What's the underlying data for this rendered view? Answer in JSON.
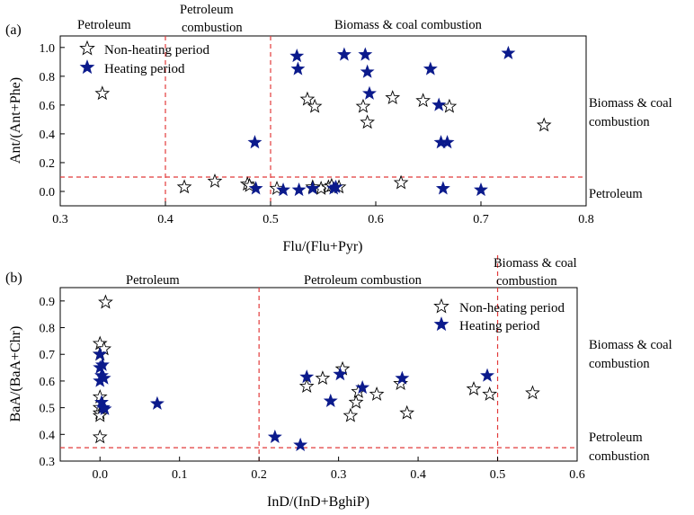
{
  "chart_data": [
    {
      "type": "scatter",
      "panel_label": "(a)",
      "xlabel": "Flu/(Flu+Pyr)",
      "ylabel": "Ant/(Ant+Phe)",
      "xlim": [
        0.3,
        0.8
      ],
      "ylim": [
        -0.1,
        1.08
      ],
      "xticks": [
        0.3,
        0.4,
        0.5,
        0.6,
        0.7,
        0.8
      ],
      "xtick_labels": [
        "0.3",
        "0.4",
        "0.5",
        "0.6",
        "0.7",
        "0.8"
      ],
      "yticks": [
        0.0,
        0.2,
        0.4,
        0.6,
        0.8,
        1.0
      ],
      "ytick_labels": [
        "0.0",
        "0.2",
        "0.4",
        "0.6",
        "0.8",
        "1.0"
      ],
      "legend_position": "top-left",
      "thresholds": [
        {
          "axis": "x",
          "value": 0.4
        },
        {
          "axis": "x",
          "value": 0.5
        },
        {
          "axis": "y",
          "value": 0.1
        }
      ],
      "region_labels": {
        "top_left": "Petroleum",
        "top_middle": [
          "Petroleum",
          "combustion"
        ],
        "top_right": "Biomass & coal combustion",
        "right_upper": [
          "Biomass & coal",
          "combustion"
        ],
        "right_lower": "Petroleum"
      },
      "series": [
        {
          "name": "Non-heating period",
          "marker": "open-star",
          "x": [
            0.34,
            0.418,
            0.447,
            0.478,
            0.48,
            0.506,
            0.535,
            0.54,
            0.542,
            0.548,
            0.555,
            0.558,
            0.565,
            0.588,
            0.592,
            0.616,
            0.624,
            0.645,
            0.67,
            0.76
          ],
          "y": [
            0.68,
            0.03,
            0.07,
            0.05,
            0.04,
            0.02,
            0.64,
            0.03,
            0.59,
            0.02,
            0.03,
            0.04,
            0.03,
            0.59,
            0.48,
            0.65,
            0.06,
            0.63,
            0.59,
            0.46
          ]
        },
        {
          "name": "Heating period",
          "marker": "filled-star",
          "x": [
            0.485,
            0.486,
            0.512,
            0.525,
            0.526,
            0.527,
            0.54,
            0.56,
            0.562,
            0.57,
            0.59,
            0.592,
            0.594,
            0.652,
            0.66,
            0.662,
            0.664,
            0.668,
            0.7,
            0.726
          ],
          "y": [
            0.34,
            0.02,
            0.01,
            0.94,
            0.85,
            0.01,
            0.02,
            0.02,
            0.03,
            0.95,
            0.95,
            0.83,
            0.68,
            0.85,
            0.6,
            0.34,
            0.02,
            0.34,
            0.01,
            0.96
          ]
        }
      ]
    },
    {
      "type": "scatter",
      "panel_label": "(b)",
      "xlabel": "InD/(InD+BghiP)",
      "ylabel": "BaA/(BaA+Chr)",
      "xlim": [
        -0.05,
        0.6
      ],
      "ylim": [
        0.3,
        0.95
      ],
      "xticks": [
        0.0,
        0.1,
        0.2,
        0.3,
        0.4,
        0.5,
        0.6
      ],
      "xtick_labels": [
        "0.0",
        "0.1",
        "0.2",
        "0.3",
        "0.4",
        "0.5",
        "0.6"
      ],
      "yticks": [
        0.3,
        0.4,
        0.5,
        0.6,
        0.7,
        0.8,
        0.9
      ],
      "ytick_labels": [
        "0.3",
        "0.4",
        "0.5",
        "0.6",
        "0.7",
        "0.8",
        "0.9"
      ],
      "legend_position": "top-right",
      "thresholds": [
        {
          "axis": "x",
          "value": 0.2
        },
        {
          "axis": "x",
          "value": 0.5
        },
        {
          "axis": "y",
          "value": 0.35
        }
      ],
      "region_labels": {
        "top_left": "Petroleum",
        "top_middle": "Petroleum combustion",
        "top_right": [
          "Biomass & coal",
          "combustion"
        ],
        "right_upper": [
          "Biomass & coal",
          "combustion"
        ],
        "right_lower": [
          "Petroleum",
          "combustion"
        ]
      },
      "series": [
        {
          "name": "Non-heating period",
          "marker": "open-star",
          "x": [
            0.0,
            0.0,
            0.0,
            0.0,
            0.0,
            0.0,
            0.0,
            0.005,
            0.007,
            0.26,
            0.28,
            0.305,
            0.315,
            0.322,
            0.325,
            0.348,
            0.378,
            0.386,
            0.47,
            0.49,
            0.544
          ],
          "y": [
            0.74,
            0.7,
            0.54,
            0.5,
            0.48,
            0.47,
            0.39,
            0.72,
            0.895,
            0.58,
            0.61,
            0.645,
            0.47,
            0.52,
            0.56,
            0.55,
            0.59,
            0.48,
            0.57,
            0.55,
            0.555
          ]
        },
        {
          "name": "Heating period",
          "marker": "filled-star",
          "x": [
            0.0,
            0.0,
            0.0,
            0.002,
            0.002,
            0.003,
            0.004,
            0.005,
            0.006,
            0.072,
            0.22,
            0.252,
            0.26,
            0.29,
            0.302,
            0.33,
            0.38,
            0.487
          ],
          "y": [
            0.7,
            0.65,
            0.6,
            0.62,
            0.52,
            0.66,
            0.5,
            0.61,
            0.495,
            0.515,
            0.39,
            0.36,
            0.615,
            0.525,
            0.625,
            0.575,
            0.61,
            0.62
          ]
        }
      ]
    }
  ]
}
